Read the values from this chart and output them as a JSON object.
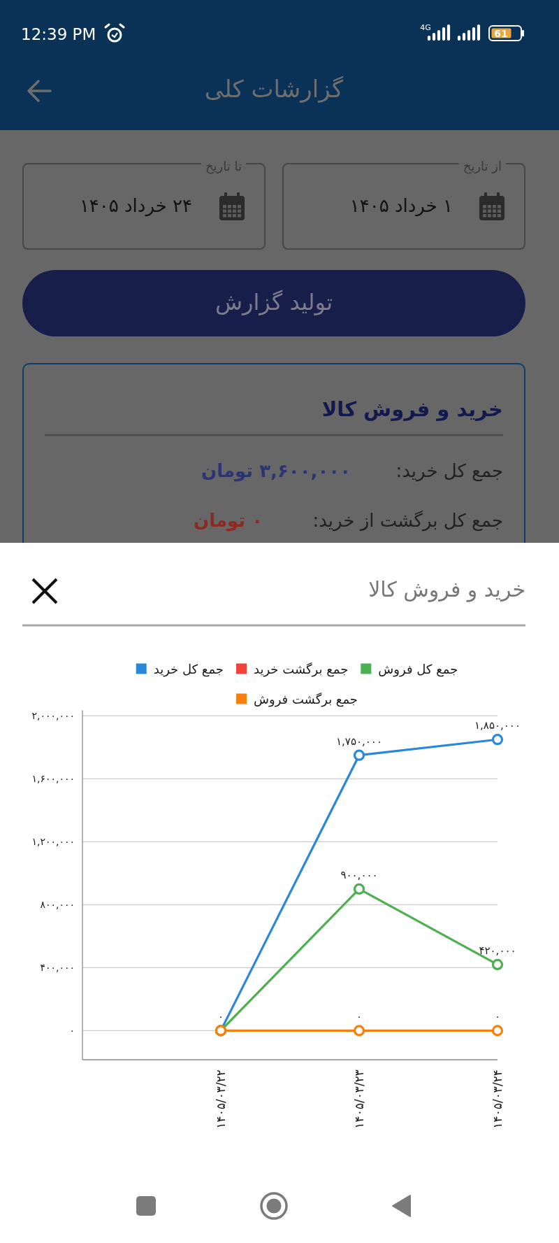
{
  "chart_data": [
    {
      "type": "other",
      "title": "گزارشات کلی",
      "annotations": [
        "12:39 PM",
        "4G",
        "61",
        "از تاریخ",
        "۱ خرداد ۱۴۰۵",
        "تا تاریخ",
        "۲۴ خرداد ۱۴۰۵",
        "تولید گزارش",
        "خرید و فروش کالا",
        "جمع کل خرید:",
        "۳,۶۰۰,۰۰۰ تومان",
        "جمع کل برگشت از خرید:",
        "۰ تومان"
      ]
    },
    {
      "type": "line",
      "title": "خرید و فروش کالا",
      "categories": [
        "۱۴۰۵/۰۳/۲۲",
        "۱۴۰۵/۰۳/۲۳",
        "۱۴۰۵/۰۳/۲۴"
      ],
      "series": [
        {
          "name": "جمع کل خرید",
          "color": "#2a88db",
          "values": [
            0,
            1750000,
            1850000
          ],
          "value_labels": [
            null,
            "۱,۷۵۰,۰۰۰",
            "۱,۸۵۰,۰۰۰"
          ]
        },
        {
          "name": "جمع برگشت خرید",
          "color": "#f0443a",
          "values": [
            null,
            null,
            null
          ]
        },
        {
          "name": "جمع کل فروش",
          "color": "#4caf50",
          "values": [
            0,
            900000,
            420000
          ],
          "value_labels": [
            null,
            "۹۰۰,۰۰۰",
            "۴۲۰,۰۰۰"
          ]
        },
        {
          "name": "جمع برگشت فروش",
          "color": "#f5800f",
          "values": [
            0,
            0,
            0
          ],
          "value_labels": [
            "۰",
            "۰",
            "۰"
          ]
        }
      ],
      "ylim": [
        -185000,
        2035000
      ],
      "yticks": [
        {
          "value": 0,
          "label": "۰"
        },
        {
          "value": 400000,
          "label": "۴۰۰,۰۰۰"
        },
        {
          "value": 800000,
          "label": "۸۰۰,۰۰۰"
        },
        {
          "value": 1200000,
          "label": "۱,۲۰۰,۰۰۰"
        },
        {
          "value": 1600000,
          "label": "۱,۶۰۰,۰۰۰"
        },
        {
          "value": 2000000,
          "label": "۲,۰۰۰,۰۰۰"
        }
      ],
      "grid": "y",
      "legend": "top",
      "marker": "circle"
    }
  ]
}
